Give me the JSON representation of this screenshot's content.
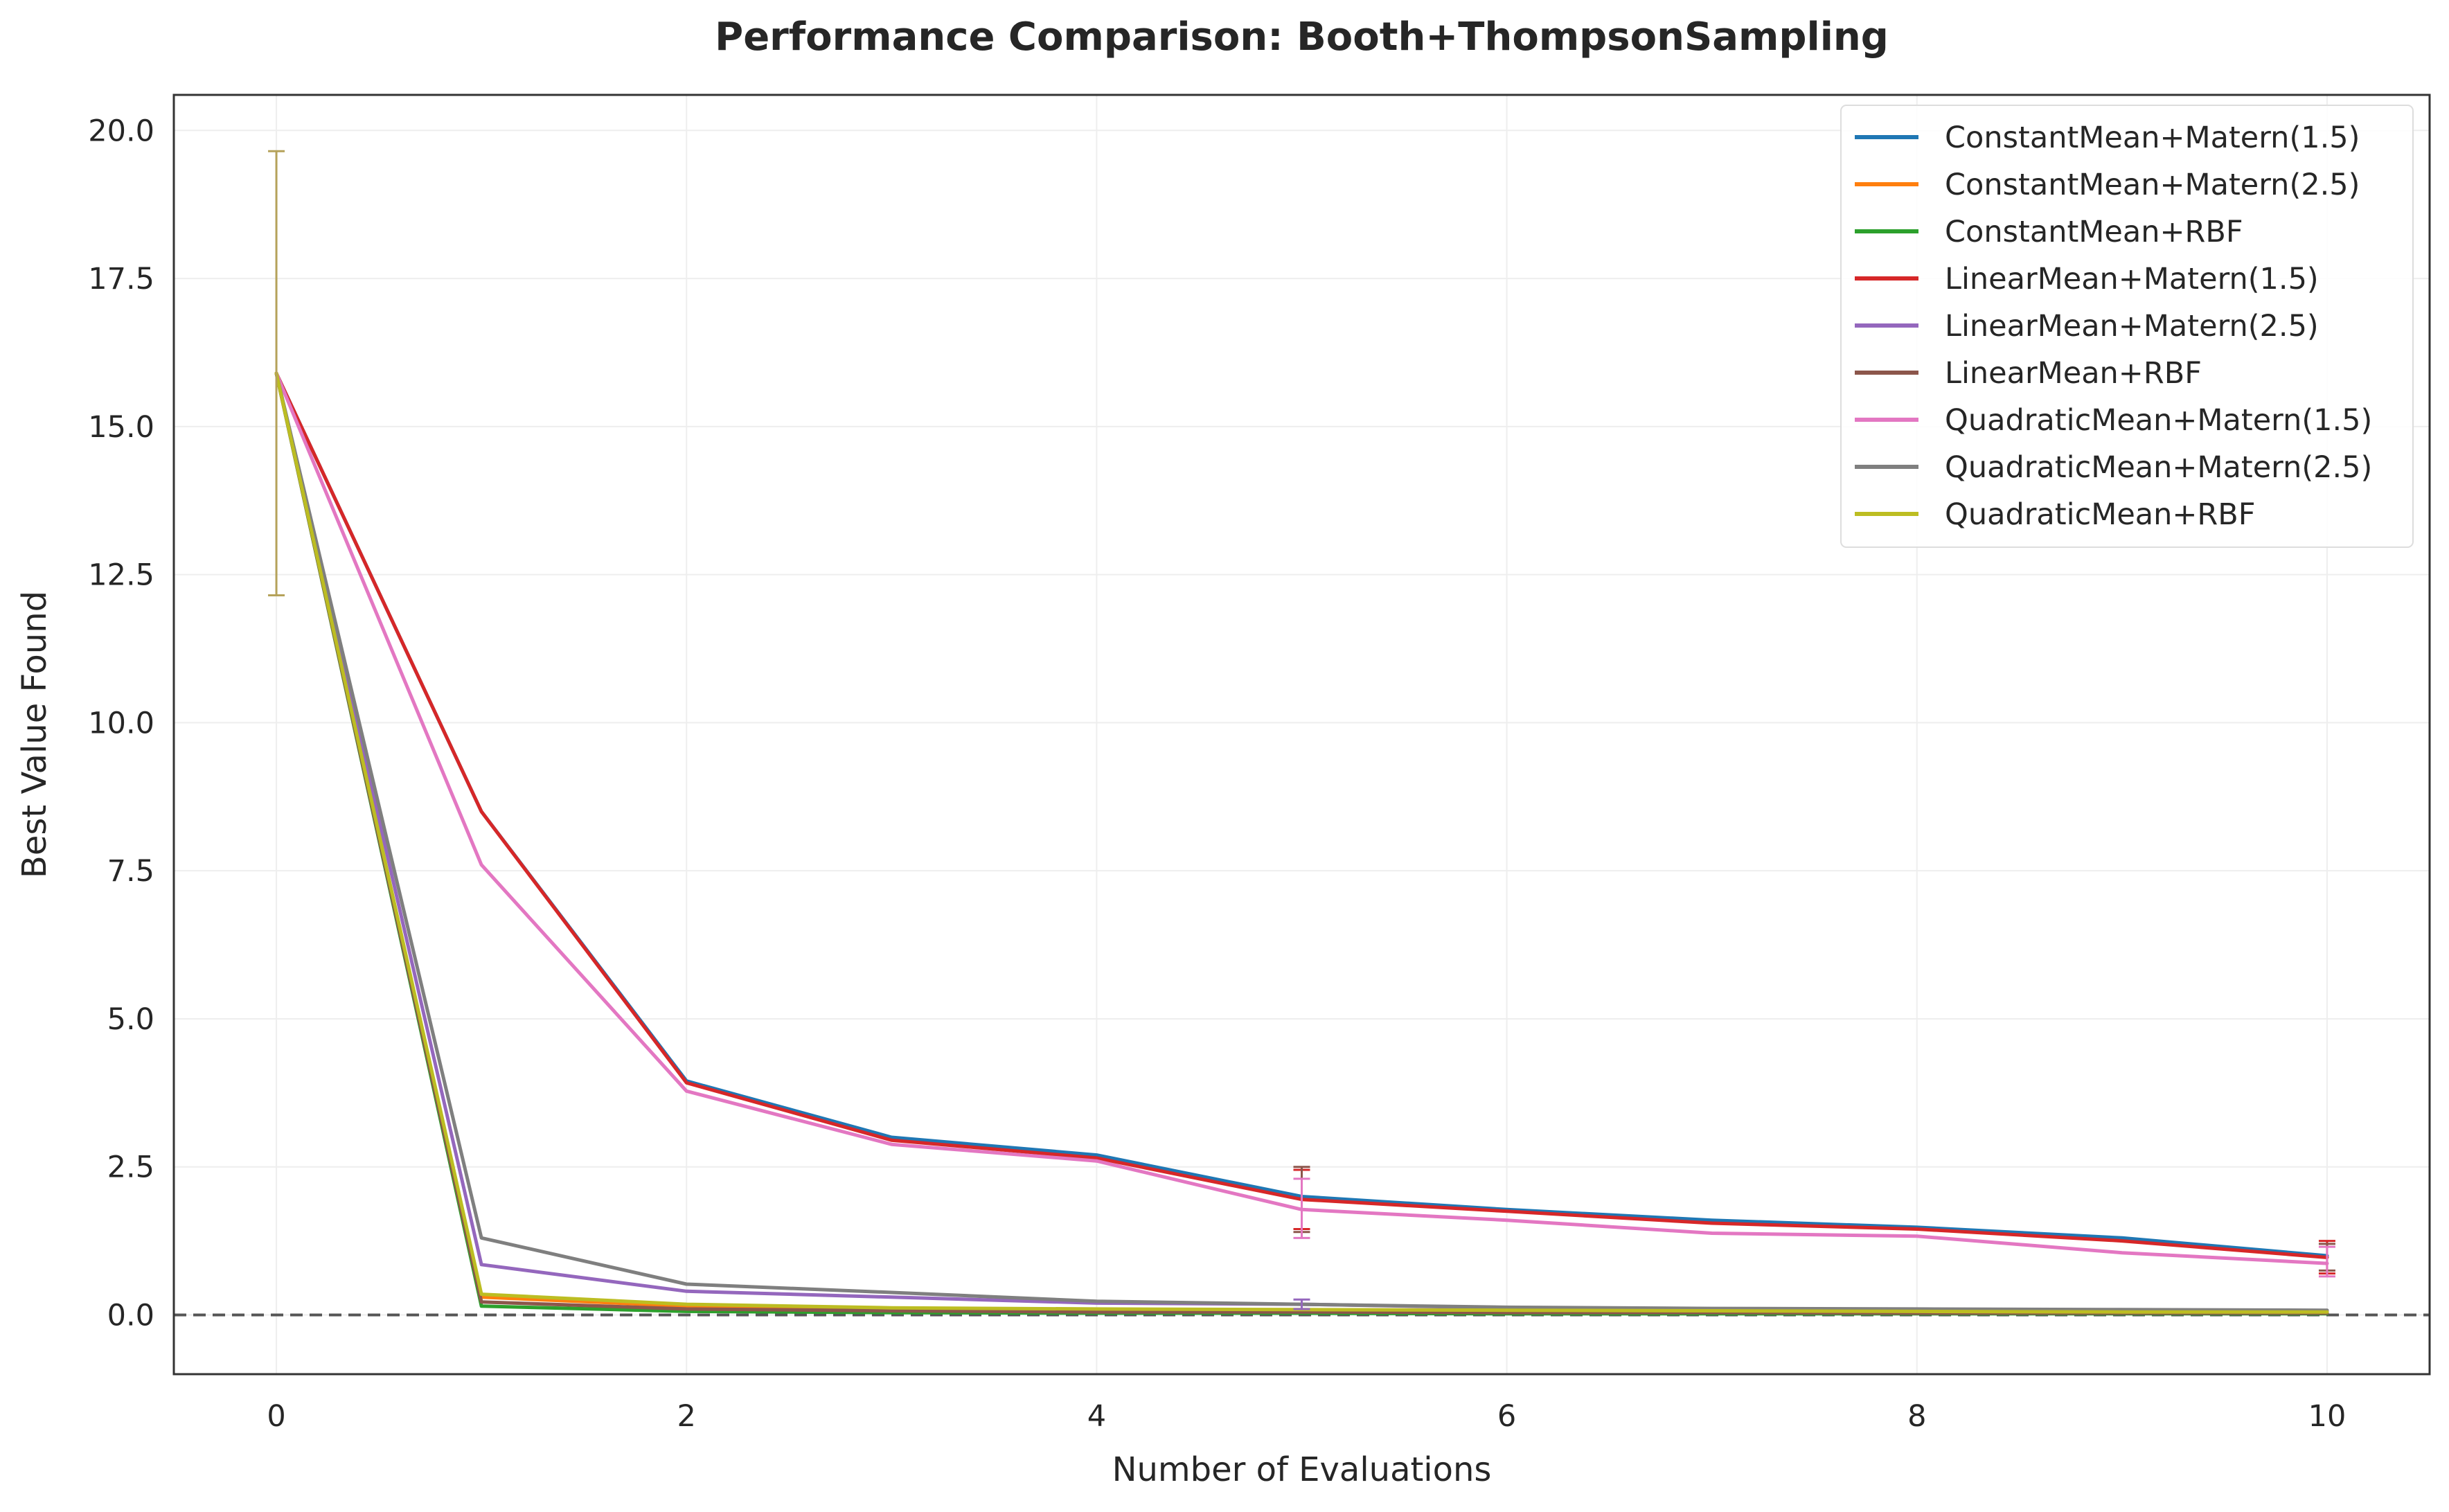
{
  "chart_data": {
    "type": "line",
    "title": "Performance Comparison: Booth+ThompsonSampling",
    "xlabel": "Number of Evaluations",
    "ylabel": "Best Value Found",
    "xlim": [
      -0.5,
      10.5
    ],
    "ylim": [
      -1.0,
      20.6
    ],
    "xticks": [
      0,
      2,
      4,
      6,
      8,
      10
    ],
    "yticks": [
      0.0,
      2.5,
      5.0,
      7.5,
      10.0,
      12.5,
      15.0,
      17.5,
      20.0
    ],
    "xtick_labels": [
      "0",
      "2",
      "4",
      "6",
      "8",
      "10"
    ],
    "ytick_labels": [
      "0.0",
      "2.5",
      "5.0",
      "7.5",
      "10.0",
      "12.5",
      "15.0",
      "17.5",
      "20.0"
    ],
    "grid": true,
    "legend_position": "top-right",
    "reference_line": {
      "y": 0.0,
      "style": "dashed",
      "color": "#555555"
    },
    "x": [
      0,
      1,
      2,
      3,
      4,
      5,
      6,
      7,
      8,
      9,
      10
    ],
    "series": [
      {
        "name": "ConstantMean+Matern(1.5)",
        "color": "#1f77b4",
        "values": [
          15.9,
          8.5,
          3.95,
          3.0,
          2.7,
          2.0,
          1.78,
          1.6,
          1.48,
          1.3,
          1.0
        ],
        "error_bars": []
      },
      {
        "name": "ConstantMean+Matern(2.5)",
        "color": "#ff7f0e",
        "values": [
          15.9,
          0.3,
          0.15,
          0.1,
          0.08,
          0.07,
          0.06,
          0.05,
          0.05,
          0.04,
          0.04
        ],
        "error_bars": []
      },
      {
        "name": "ConstantMean+RBF",
        "color": "#2ca02c",
        "values": [
          15.9,
          0.15,
          0.06,
          0.04,
          0.03,
          0.03,
          0.02,
          0.02,
          0.02,
          0.02,
          0.02
        ],
        "error_bars": []
      },
      {
        "name": "LinearMean+Matern(1.5)",
        "color": "#d62728",
        "values": [
          15.9,
          8.5,
          3.92,
          2.95,
          2.65,
          1.95,
          1.75,
          1.55,
          1.45,
          1.25,
          0.97
        ],
        "error_bars": [
          {
            "x": 5,
            "low": 1.45,
            "high": 2.45
          },
          {
            "x": 10,
            "low": 0.7,
            "high": 1.25
          }
        ]
      },
      {
        "name": "LinearMean+Matern(2.5)",
        "color": "#9467bd",
        "values": [
          15.9,
          0.85,
          0.4,
          0.3,
          0.2,
          0.18,
          0.12,
          0.1,
          0.08,
          0.07,
          0.06
        ],
        "error_bars": [
          {
            "x": 5,
            "low": 0.1,
            "high": 0.26
          }
        ]
      },
      {
        "name": "LinearMean+RBF",
        "color": "#8c564b",
        "values": [
          15.9,
          0.22,
          0.1,
          0.07,
          0.05,
          0.05,
          0.04,
          0.04,
          0.03,
          0.03,
          0.03
        ],
        "error_bars": [
          {
            "x": 5,
            "low": 1.4,
            "high": 2.5
          },
          {
            "x": 10,
            "low": 0.75,
            "high": 1.2
          }
        ]
      },
      {
        "name": "QuadraticMean+Matern(1.5)",
        "color": "#e377c2",
        "values": [
          15.9,
          7.6,
          3.78,
          2.88,
          2.6,
          1.78,
          1.6,
          1.38,
          1.33,
          1.05,
          0.87
        ],
        "error_bars": [
          {
            "x": 5,
            "low": 1.3,
            "high": 2.3
          },
          {
            "x": 10,
            "low": 0.65,
            "high": 1.15
          }
        ]
      },
      {
        "name": "QuadraticMean+Matern(2.5)",
        "color": "#7f7f7f",
        "values": [
          15.9,
          1.3,
          0.52,
          0.38,
          0.23,
          0.18,
          0.13,
          0.11,
          0.1,
          0.09,
          0.08
        ],
        "error_bars": []
      },
      {
        "name": "QuadraticMean+RBF",
        "color": "#bcbd22",
        "values": [
          15.9,
          0.35,
          0.18,
          0.12,
          0.1,
          0.09,
          0.08,
          0.07,
          0.06,
          0.05,
          0.05
        ],
        "error_bars": [
          {
            "x": 0,
            "low": 12.15,
            "high": 19.65,
            "color": "#b5a25a"
          }
        ]
      }
    ]
  }
}
